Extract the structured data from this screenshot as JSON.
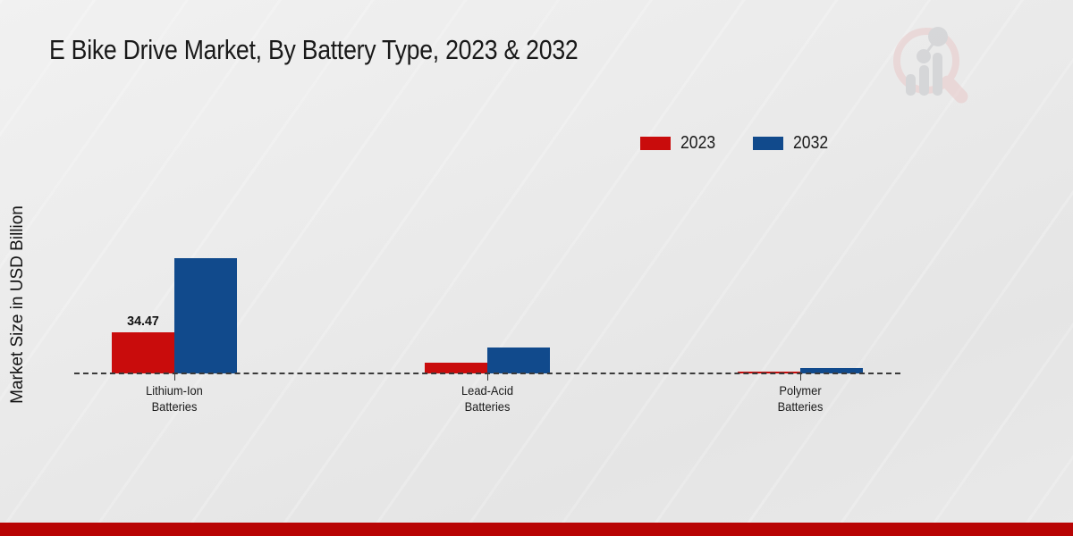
{
  "header": {
    "title": "E Bike Drive Market, By Battery Type, 2023 & 2032"
  },
  "icons": {
    "watermark": "magnifier-bar-chart-logo"
  },
  "colors": {
    "series_2023": "#c90c0c",
    "series_2032": "#114a8c",
    "bottom_band": "#b80404",
    "axis_dash": "#3a3a3a",
    "watermark_pink": "#e9c9c9",
    "watermark_gray": "#c5c7cb"
  },
  "chart_data": {
    "type": "bar",
    "title": "E Bike Drive Market, By Battery Type, 2023 & 2032",
    "xlabel": "",
    "ylabel": "Market Size in USD Billion",
    "categories": [
      "Lithium-Ion Batteries",
      "Lead-Acid Batteries",
      "Polymer Batteries"
    ],
    "category_lines": [
      [
        "Lithium-Ion",
        "Batteries"
      ],
      [
        "Lead-Acid",
        "Batteries"
      ],
      [
        "Polymer",
        "Batteries"
      ]
    ],
    "series": [
      {
        "name": "2023",
        "color": "#c90c0c",
        "values": [
          34.47,
          9.0,
          1.3
        ]
      },
      {
        "name": "2032",
        "color": "#114a8c",
        "values": [
          96.6,
          21.8,
          4.3
        ]
      }
    ],
    "value_labels": [
      {
        "series_index": 0,
        "category_index": 0,
        "text": "34.47"
      }
    ],
    "legend_position": "top-right",
    "grid": false,
    "baseline_style": "dashed",
    "ylim": [
      0,
      105
    ]
  }
}
